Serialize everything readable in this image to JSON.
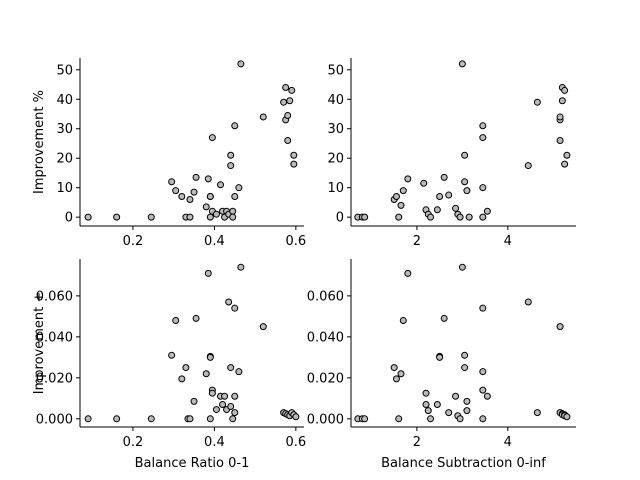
{
  "chart_data": [
    {
      "type": "scatter",
      "panel": "top-left",
      "xlabel": "",
      "ylabel": "Improvement %",
      "xlim": [
        0.07,
        0.62
      ],
      "ylim": [
        -3,
        54
      ],
      "xticks": [
        {
          "v": 0.2,
          "label": "0.2"
        },
        {
          "v": 0.4,
          "label": "0.4"
        },
        {
          "v": 0.6,
          "label": "0.6"
        }
      ],
      "yticks": [
        {
          "v": 0,
          "label": "0"
        },
        {
          "v": 10,
          "label": "10"
        },
        {
          "v": 20,
          "label": "20"
        },
        {
          "v": 30,
          "label": "30"
        },
        {
          "v": 40,
          "label": "40"
        },
        {
          "v": 50,
          "label": "50"
        }
      ],
      "points": [
        [
          0.09,
          0
        ],
        [
          0.16,
          0
        ],
        [
          0.245,
          0
        ],
        [
          0.295,
          12
        ],
        [
          0.305,
          9
        ],
        [
          0.32,
          7
        ],
        [
          0.33,
          0
        ],
        [
          0.34,
          0
        ],
        [
          0.34,
          6
        ],
        [
          0.35,
          8.5
        ],
        [
          0.355,
          13.5
        ],
        [
          0.38,
          3.5
        ],
        [
          0.385,
          13
        ],
        [
          0.39,
          7
        ],
        [
          0.39,
          0
        ],
        [
          0.39,
          7
        ],
        [
          0.395,
          27
        ],
        [
          0.395,
          2
        ],
        [
          0.405,
          1
        ],
        [
          0.415,
          11
        ],
        [
          0.42,
          2
        ],
        [
          0.425,
          0
        ],
        [
          0.43,
          2
        ],
        [
          0.435,
          1
        ],
        [
          0.44,
          17.5
        ],
        [
          0.44,
          21
        ],
        [
          0.445,
          2
        ],
        [
          0.445,
          0
        ],
        [
          0.45,
          7
        ],
        [
          0.45,
          31
        ],
        [
          0.46,
          10
        ],
        [
          0.465,
          52
        ],
        [
          0.52,
          34
        ],
        [
          0.57,
          39
        ],
        [
          0.575,
          44
        ],
        [
          0.575,
          33
        ],
        [
          0.58,
          26
        ],
        [
          0.58,
          34.5
        ],
        [
          0.585,
          39.5
        ],
        [
          0.59,
          43
        ],
        [
          0.595,
          21
        ],
        [
          0.595,
          18
        ]
      ]
    },
    {
      "type": "scatter",
      "panel": "top-right",
      "xlabel": "",
      "ylabel": "",
      "xlim": [
        0.55,
        5.5
      ],
      "ylim": [
        -3,
        54
      ],
      "xticks": [
        {
          "v": 2,
          "label": "2"
        },
        {
          "v": 4,
          "label": "4"
        }
      ],
      "yticks": [
        {
          "v": 0,
          "label": "0"
        },
        {
          "v": 10,
          "label": "10"
        },
        {
          "v": 20,
          "label": "20"
        },
        {
          "v": 30,
          "label": "30"
        },
        {
          "v": 40,
          "label": "40"
        },
        {
          "v": 50,
          "label": "50"
        }
      ],
      "points": [
        [
          0.7,
          0
        ],
        [
          0.8,
          0
        ],
        [
          0.85,
          0
        ],
        [
          1.5,
          6
        ],
        [
          1.55,
          7
        ],
        [
          1.6,
          0
        ],
        [
          1.65,
          4
        ],
        [
          1.7,
          9
        ],
        [
          1.8,
          13
        ],
        [
          2.15,
          11.5
        ],
        [
          2.2,
          2.5
        ],
        [
          2.25,
          1
        ],
        [
          2.3,
          0
        ],
        [
          2.45,
          2.5
        ],
        [
          2.5,
          7
        ],
        [
          2.6,
          13.5
        ],
        [
          2.7,
          7.5
        ],
        [
          2.85,
          3
        ],
        [
          2.9,
          1
        ],
        [
          2.95,
          0
        ],
        [
          3.0,
          52
        ],
        [
          3.05,
          21
        ],
        [
          3.05,
          12
        ],
        [
          3.1,
          9
        ],
        [
          3.15,
          0
        ],
        [
          3.45,
          27
        ],
        [
          3.45,
          31
        ],
        [
          3.45,
          10
        ],
        [
          3.45,
          0
        ],
        [
          3.55,
          2
        ],
        [
          4.45,
          17.5
        ],
        [
          4.65,
          39
        ],
        [
          5.15,
          33
        ],
        [
          5.15,
          34
        ],
        [
          5.15,
          26
        ],
        [
          5.2,
          44
        ],
        [
          5.2,
          39.5
        ],
        [
          5.25,
          43
        ],
        [
          5.25,
          18
        ],
        [
          5.3,
          21
        ]
      ]
    },
    {
      "type": "scatter",
      "panel": "bottom-left",
      "xlabel": "Balance Ratio 0-1",
      "ylabel": "Improvement +",
      "xlim": [
        0.07,
        0.62
      ],
      "ylim": [
        -0.004,
        0.078
      ],
      "xticks": [
        {
          "v": 0.2,
          "label": "0.2"
        },
        {
          "v": 0.4,
          "label": "0.4"
        },
        {
          "v": 0.6,
          "label": "0.6"
        }
      ],
      "yticks": [
        {
          "v": 0,
          "label": "0.000"
        },
        {
          "v": 0.02,
          "label": "0.020"
        },
        {
          "v": 0.04,
          "label": "0.040"
        },
        {
          "v": 0.06,
          "label": "0.060"
        }
      ],
      "points": [
        [
          0.09,
          0
        ],
        [
          0.16,
          0
        ],
        [
          0.245,
          0
        ],
        [
          0.295,
          0.031
        ],
        [
          0.305,
          0.048
        ],
        [
          0.32,
          0.0195
        ],
        [
          0.33,
          0.025
        ],
        [
          0.335,
          0
        ],
        [
          0.34,
          0
        ],
        [
          0.35,
          0.0085
        ],
        [
          0.355,
          0.049
        ],
        [
          0.38,
          0.022
        ],
        [
          0.385,
          0.071
        ],
        [
          0.39,
          0.0305
        ],
        [
          0.39,
          0.03
        ],
        [
          0.39,
          0
        ],
        [
          0.395,
          0.014
        ],
        [
          0.395,
          0.0125
        ],
        [
          0.405,
          0.0045
        ],
        [
          0.415,
          0.011
        ],
        [
          0.42,
          0.007
        ],
        [
          0.425,
          0.011
        ],
        [
          0.43,
          0.0045
        ],
        [
          0.435,
          0.057
        ],
        [
          0.44,
          0.025
        ],
        [
          0.44,
          0.006
        ],
        [
          0.445,
          0
        ],
        [
          0.45,
          0.054
        ],
        [
          0.45,
          0.011
        ],
        [
          0.45,
          0.003
        ],
        [
          0.46,
          0.023
        ],
        [
          0.465,
          0.074
        ],
        [
          0.52,
          0.045
        ],
        [
          0.57,
          0.003
        ],
        [
          0.575,
          0.0025
        ],
        [
          0.58,
          0.002
        ],
        [
          0.585,
          0.0015
        ],
        [
          0.59,
          0.003
        ],
        [
          0.595,
          0.002
        ],
        [
          0.6,
          0.001
        ]
      ]
    },
    {
      "type": "scatter",
      "panel": "bottom-right",
      "xlabel": "Balance Subtraction 0-inf",
      "ylabel": "",
      "xlim": [
        0.55,
        5.5
      ],
      "ylim": [
        -0.004,
        0.078
      ],
      "xticks": [
        {
          "v": 2,
          "label": "2"
        },
        {
          "v": 4,
          "label": "4"
        }
      ],
      "yticks": [
        {
          "v": 0,
          "label": "0.000"
        },
        {
          "v": 0.02,
          "label": "0.020"
        },
        {
          "v": 0.04,
          "label": "0.040"
        },
        {
          "v": 0.06,
          "label": "0.060"
        }
      ],
      "points": [
        [
          0.7,
          0
        ],
        [
          0.8,
          0
        ],
        [
          0.85,
          0
        ],
        [
          1.5,
          0.025
        ],
        [
          1.55,
          0.0195
        ],
        [
          1.6,
          0
        ],
        [
          1.65,
          0.022
        ],
        [
          1.7,
          0.048
        ],
        [
          1.8,
          0.071
        ],
        [
          2.2,
          0.0125
        ],
        [
          2.2,
          0.007
        ],
        [
          2.25,
          0.004
        ],
        [
          2.3,
          0
        ],
        [
          2.45,
          0.007
        ],
        [
          2.5,
          0.0305
        ],
        [
          2.5,
          0.03
        ],
        [
          2.6,
          0.049
        ],
        [
          2.7,
          0.003
        ],
        [
          2.85,
          0.011
        ],
        [
          2.9,
          0.0015
        ],
        [
          2.95,
          0
        ],
        [
          3.0,
          0.074
        ],
        [
          3.05,
          0.031
        ],
        [
          3.05,
          0.025
        ],
        [
          3.1,
          0.0085
        ],
        [
          3.1,
          0.004
        ],
        [
          3.45,
          0.054
        ],
        [
          3.45,
          0.023
        ],
        [
          3.45,
          0.014
        ],
        [
          3.45,
          0
        ],
        [
          3.55,
          0.011
        ],
        [
          4.45,
          0.057
        ],
        [
          4.65,
          0.003
        ],
        [
          5.15,
          0.045
        ],
        [
          5.15,
          0.003
        ],
        [
          5.2,
          0.0025
        ],
        [
          5.2,
          0.002
        ],
        [
          5.25,
          0.002
        ],
        [
          5.25,
          0.0015
        ],
        [
          5.3,
          0.001
        ]
      ]
    }
  ]
}
